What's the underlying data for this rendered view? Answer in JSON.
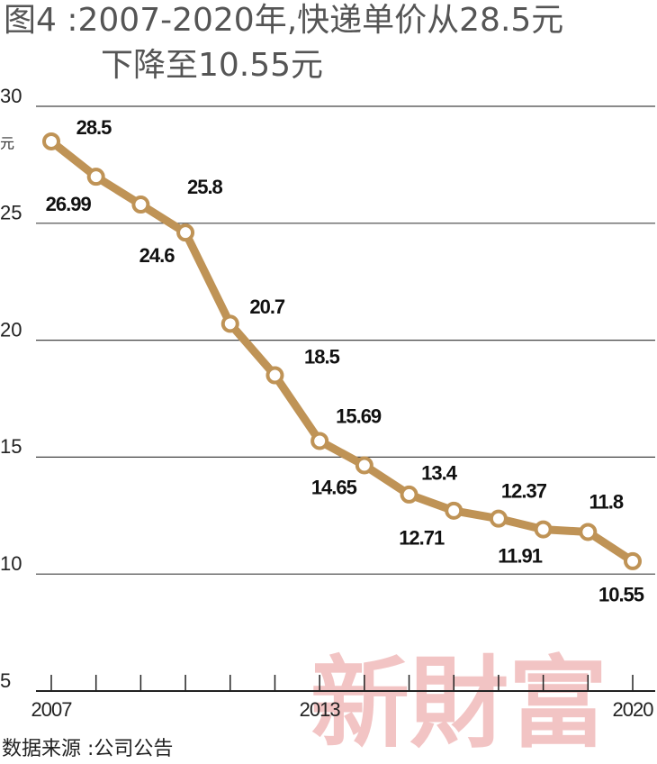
{
  "chart_data": {
    "type": "line",
    "title": "图4 :2007-2020年,快递单价从28.5元",
    "subtitle": "下降至10.55元",
    "y_unit": "元",
    "source": "数据来源 :公司公告",
    "watermark": "新財富",
    "categories": [
      "2007",
      null,
      null,
      null,
      null,
      null,
      "2013",
      null,
      null,
      null,
      null,
      null,
      null,
      "2020"
    ],
    "series": [
      {
        "name": "快递单价",
        "color": "#bf9356",
        "values": [
          28.5,
          26.99,
          25.8,
          24.6,
          20.7,
          18.5,
          15.69,
          14.65,
          13.4,
          12.71,
          12.37,
          11.91,
          11.8,
          10.55
        ]
      }
    ],
    "ylim": [
      5,
      30
    ],
    "yticks": [
      5,
      10,
      15,
      20,
      25,
      30
    ],
    "grid": true
  }
}
